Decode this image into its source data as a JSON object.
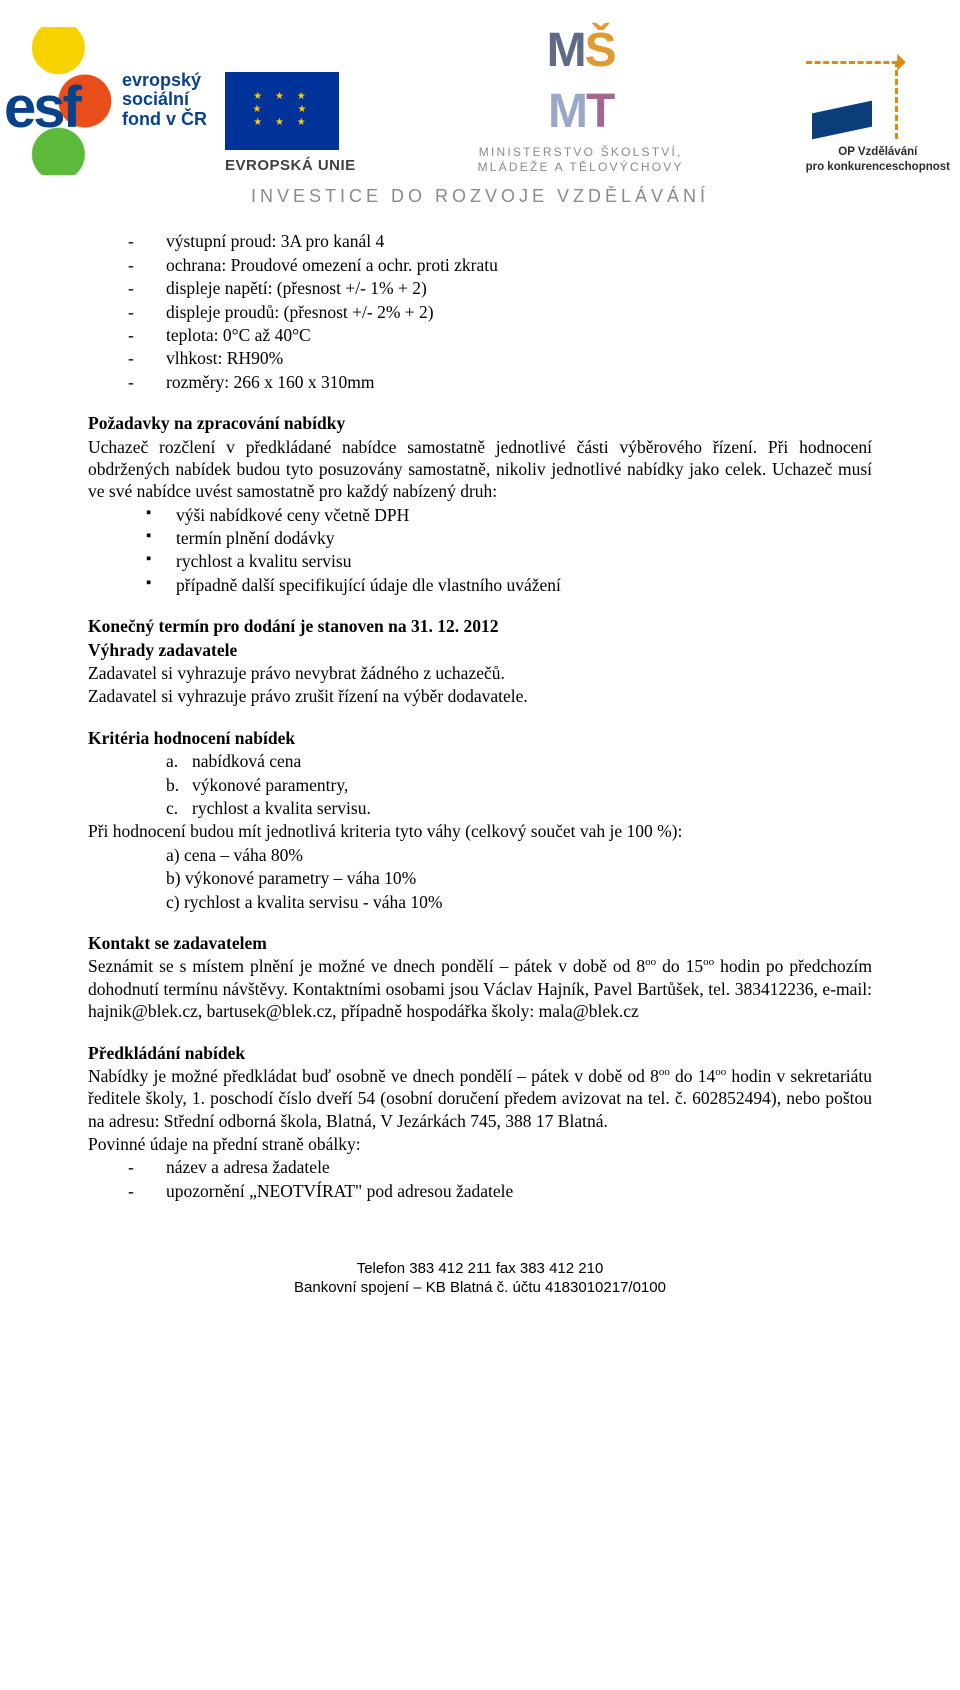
{
  "header": {
    "esf_lines": [
      "evropský",
      "sociální",
      "fond v ČR"
    ],
    "eu_label": "EVROPSKÁ UNIE",
    "msmt_line1": "MINISTERSTVO ŠKOLSTVÍ,",
    "msmt_line2": "MLÁDEŽE A TĚLOVÝCHOVY",
    "opvk_line1": "OP Vzdělávání",
    "opvk_line2": "pro konkurenceschopnost",
    "invest": "INVESTICE DO ROZVOJE VZDĚLÁVÁNÍ"
  },
  "specs": {
    "items": [
      "výstupní proud: 3A pro kanál 4",
      "ochrana: Proudové omezení a ochr. proti zkratu",
      "displeje napětí: (přesnost +/- 1% + 2)",
      "displeje proudů: (přesnost +/- 2% + 2)",
      "teplota: 0°C až 40°C",
      "vlhkost: RH90%",
      "rozměry: 266 x 160 x 310mm"
    ]
  },
  "req_title": "Požadavky na zpracování nabídky",
  "req_para": "Uchazeč rozčlení v předkládané nabídce samostatně jednotlivé části výběrového řízení. Při hodnocení obdržených nabídek budou tyto posuzovány samostatně, nikoliv jednotlivé nabídky jako celek. Uchazeč musí ve své nabídce uvést samostatně pro každý nabízený druh:",
  "req_bullets": [
    "výši nabídkové ceny včetně DPH",
    "termín plnění dodávky",
    "rychlost a kvalitu servisu",
    "případně další specifikující údaje dle vlastního uvážení"
  ],
  "deadline_bold": "Konečný termín pro dodání je stanoven na 31. 12. 2012",
  "vyhrady_title": "Výhrady zadavatele",
  "vyhrady_l1": "Zadavatel si vyhrazuje právo nevybrat žádného z uchazečů.",
  "vyhrady_l2": "Zadavatel si vyhrazuje právo zrušit řízení na výběr dodavatele.",
  "krit_title": "Kritéria hodnocení nabídek",
  "krit_abc": {
    "a": "nabídková cena",
    "b": "výkonové paramentry,",
    "c": "rychlost a kvalita servisu."
  },
  "krit_intro": "Při hodnocení budou mít jednotlivá kriteria tyto váhy (celkový součet vah je 100 %):",
  "krit_weights": [
    "a) cena – váha 80%",
    "b) výkonové parametry – váha 10%",
    "c) rychlost a kvalita servisu - váha 10%"
  ],
  "kontakt_title": "Kontakt se zadavatelem",
  "kontakt_para_1": "Seznámit se s místem plnění je možné ve dnech pondělí – pátek v době od 8",
  "kontakt_para_2": " do 15",
  "kontakt_para_3": " hodin po předchozím dohodnutí termínu návštěvy. Kontaktními osobami jsou Václav Hajník, Pavel Bartůšek, tel. 383412236, e-mail: hajnik@blek.cz, bartusek@blek.cz, případně hospodářka školy: mala@blek.cz",
  "sup_oo": "oo",
  "pred_title": "Předkládání nabídek",
  "pred_para_1": "Nabídky je možné předkládat buď osobně ve dnech pondělí – pátek v době od 8",
  "pred_para_2": " do 14",
  "pred_para_3": " hodin v sekretariátu ředitele školy, 1. poschodí číslo dveří 54 (osobní doručení předem avizovat na tel. č. 602852494), nebo poštou na adresu: Střední odborná škola, Blatná, V Jezárkách 745, 388 17  Blatná.",
  "pred_sub": "Povinné údaje na přední straně obálky:",
  "pred_dashes": [
    "název a adresa žadatele",
    "upozornění „NEOTVÍRAT\" pod adresou žadatele"
  ],
  "footer_l1": "Telefon 383 412 211        fax 383 412 210",
  "footer_l2": "Bankovní spojení – KB Blatná č. účtu 4183010217/0100"
}
